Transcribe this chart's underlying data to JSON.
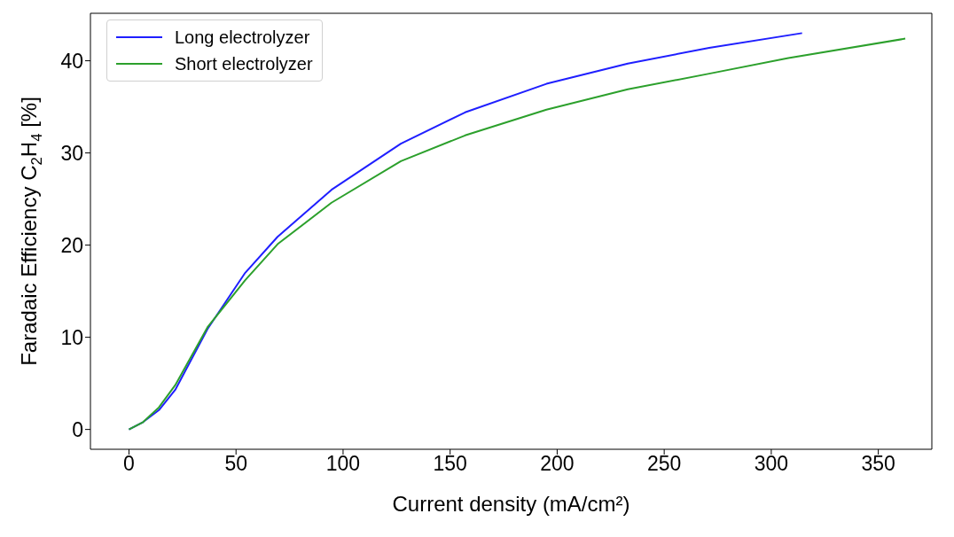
{
  "chart_data": {
    "type": "line",
    "xlabel": "Current density (mA/cm²)",
    "ylabel": "Faradaic Efficiency C$_{2}$H$_{4}$ [%]",
    "xlim": [
      -18,
      375
    ],
    "ylim": [
      -2.15,
      45.15
    ],
    "xticks": [
      0,
      50,
      100,
      150,
      200,
      250,
      300,
      350
    ],
    "yticks": [
      0,
      10,
      20,
      30,
      40
    ],
    "grid": false,
    "legend": "top left",
    "marker": "none",
    "line_style": "solid",
    "series": [
      {
        "name": "Long electrolyzer",
        "color": "#1f1fff",
        "x": [
          0,
          6.6,
          14,
          21.6,
          36.7,
          54.3,
          69.4,
          94.6,
          127,
          157,
          195,
          233,
          271,
          314.4
        ],
        "values": [
          0,
          0.8,
          2.1,
          4.3,
          10.9,
          17,
          20.9,
          26,
          31,
          34.4,
          37.5,
          39.7,
          41.4,
          43
        ]
      },
      {
        "name": "Short electrolyzer",
        "color": "#2ca02c",
        "x": [
          0,
          6.6,
          14,
          21.6,
          36.7,
          54.3,
          69.4,
          94.6,
          127,
          157,
          195,
          233,
          271,
          308,
          362.6
        ],
        "values": [
          0,
          0.8,
          2.4,
          4.8,
          11.1,
          16.2,
          20.1,
          24.6,
          29.1,
          31.9,
          34.7,
          36.9,
          38.6,
          40.3,
          42.4
        ]
      }
    ]
  }
}
